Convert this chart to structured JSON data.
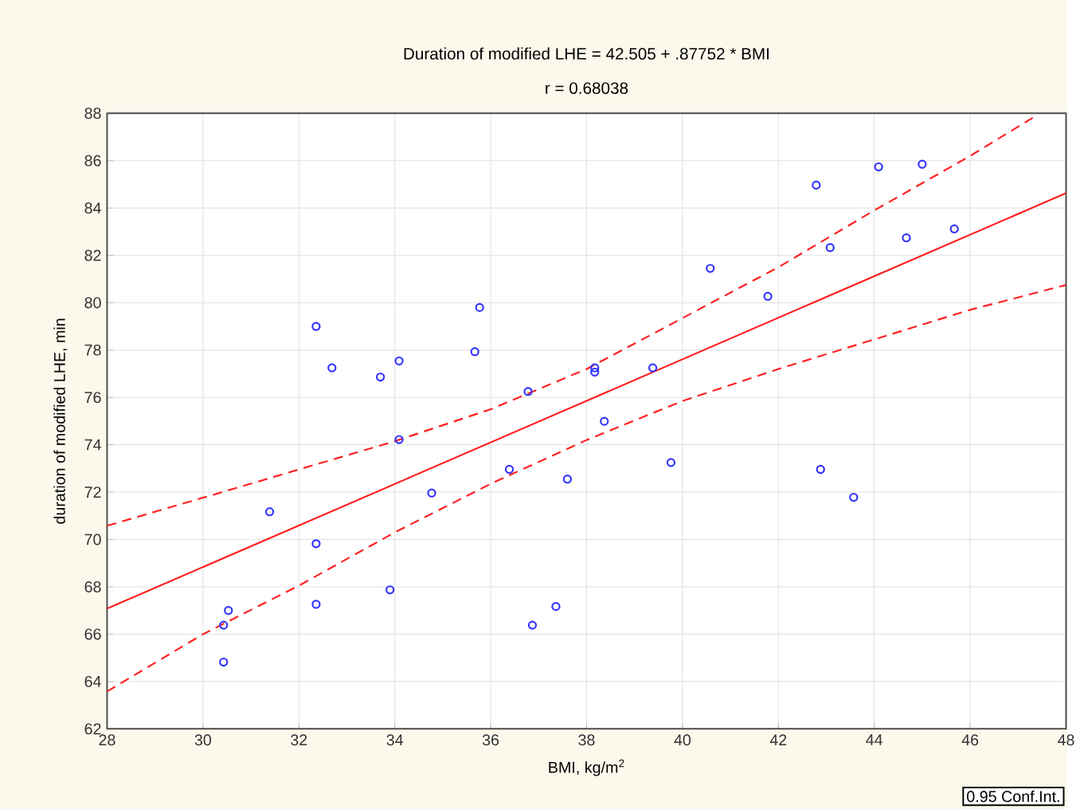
{
  "chart_data": {
    "type": "scatter",
    "title": "Duration of modified LHE = 42.505 + .87752 * BMI",
    "subtitle": "r = 0.68038",
    "xlabel": "BMI, kg/m$^{2}$",
    "ylabel": "duration of modified LHE, min",
    "xlim": [
      28,
      48
    ],
    "ylim": [
      62,
      88
    ],
    "xticks": [
      28,
      30,
      32,
      34,
      36,
      38,
      40,
      42,
      44,
      46,
      48
    ],
    "yticks": [
      62,
      64,
      66,
      68,
      70,
      72,
      74,
      76,
      78,
      80,
      82,
      84,
      86,
      88
    ],
    "grid": true,
    "annotations": [
      "0.95 Conf.Int."
    ],
    "series": [
      {
        "marker": "circle",
        "color": "#3333ff",
        "x": [
          32.36,
          32.69,
          33.7,
          34.09,
          35.77,
          35.67,
          36.78,
          34.09,
          36.39,
          37.6,
          34.77,
          31.39,
          32.36,
          33.9,
          32.36,
          37.36,
          36.87,
          30.53,
          30.43,
          30.43,
          38.17,
          38.17,
          38.37,
          39.38,
          39.76,
          40.58,
          41.78,
          42.79,
          43.08,
          42.88,
          43.57,
          44.09,
          45.0,
          44.67,
          45.67
        ],
        "values": [
          79.0,
          77.25,
          76.86,
          77.54,
          79.8,
          77.93,
          76.25,
          74.22,
          72.96,
          72.55,
          71.96,
          71.17,
          69.82,
          67.87,
          67.26,
          67.17,
          66.38,
          67.0,
          66.38,
          64.82,
          77.25,
          77.07,
          74.99,
          77.25,
          73.25,
          81.45,
          80.27,
          84.97,
          82.33,
          72.96,
          71.78,
          85.74,
          85.85,
          82.74,
          83.12
        ]
      },
      {
        "type": "line",
        "marker": "none",
        "line_style": "solid",
        "color": "#ff2020",
        "x": [
          28,
          48
        ],
        "values": [
          67.08,
          84.63
        ]
      },
      {
        "type": "line",
        "marker": "none",
        "line_style": "dashed",
        "color": "#ff2020",
        "x": [
          28,
          30.4,
          34,
          36,
          38,
          40,
          42,
          44,
          46,
          47.4
        ],
        "values": [
          70.58,
          72.0,
          74.15,
          75.5,
          77.2,
          79.35,
          81.5,
          83.9,
          86.2,
          87.93
        ]
      },
      {
        "type": "line",
        "marker": "none",
        "line_style": "dashed",
        "color": "#ff2020",
        "x": [
          28,
          30,
          32,
          34,
          36,
          38,
          40,
          42,
          44,
          46,
          48
        ],
        "values": [
          63.58,
          66.0,
          68.05,
          70.3,
          72.35,
          74.2,
          75.85,
          77.2,
          78.45,
          79.7,
          80.75
        ]
      }
    ]
  }
}
